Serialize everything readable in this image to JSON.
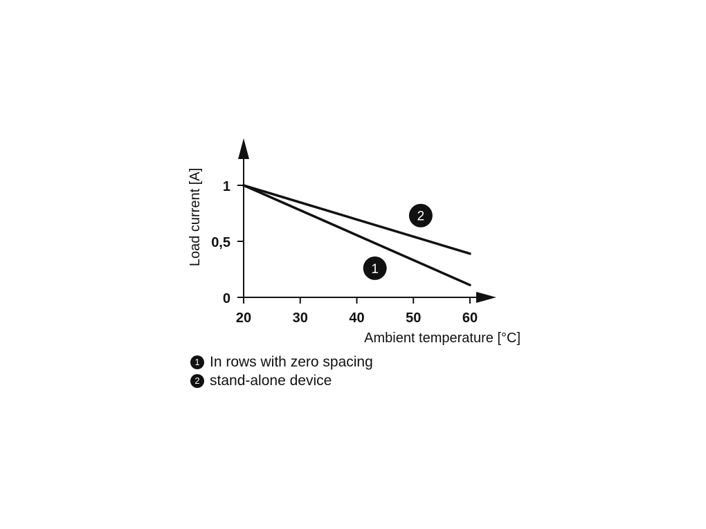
{
  "chart_data": {
    "type": "line",
    "xlabel": "Ambient temperature [°C]",
    "ylabel": "Load current [A]",
    "xlim": [
      20,
      60
    ],
    "ylim": [
      0,
      1
    ],
    "x_ticks": [
      20,
      30,
      40,
      50,
      60
    ],
    "y_ticks": [
      {
        "value": 0,
        "label": "0"
      },
      {
        "value": 0.5,
        "label": "0,5"
      },
      {
        "value": 1,
        "label": "1"
      }
    ],
    "series": [
      {
        "marker": "1",
        "x": [
          20,
          60
        ],
        "y": [
          1.0,
          0.11
        ]
      },
      {
        "marker": "2",
        "x": [
          20,
          60
        ],
        "y": [
          1.0,
          0.39
        ]
      }
    ],
    "colors": {
      "line": "#111111",
      "marker_fill": "#111111",
      "marker_text": "#ffffff"
    }
  },
  "legend": [
    {
      "badge": "1",
      "text": "In rows with zero spacing"
    },
    {
      "badge": "2",
      "text": "stand-alone device"
    }
  ]
}
